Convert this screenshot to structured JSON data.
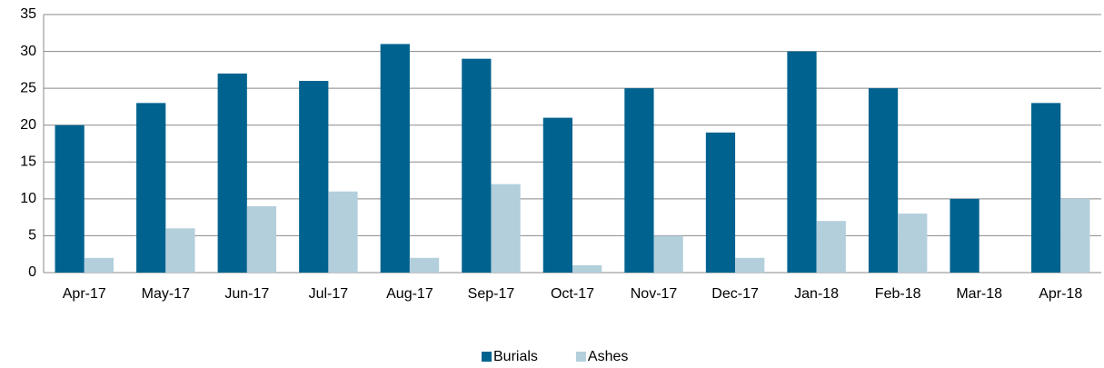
{
  "chart_data": {
    "type": "bar",
    "categories": [
      "Apr-17",
      "May-17",
      "Jun-17",
      "Jul-17",
      "Aug-17",
      "Sep-17",
      "Oct-17",
      "Nov-17",
      "Dec-17",
      "Jan-18",
      "Feb-18",
      "Mar-18",
      "Apr-18"
    ],
    "series": [
      {
        "name": "Burials",
        "color": "#00628f",
        "values": [
          20,
          23,
          27,
          26,
          31,
          29,
          21,
          25,
          19,
          30,
          25,
          10,
          23
        ]
      },
      {
        "name": "Ashes",
        "color": "#b3cfdc",
        "values": [
          2,
          6,
          9,
          11,
          2,
          12,
          1,
          5,
          2,
          7,
          8,
          0,
          10
        ]
      }
    ],
    "ylim": [
      0,
      35
    ],
    "yticks": [
      0,
      5,
      10,
      15,
      20,
      25,
      30,
      35
    ],
    "grid": true,
    "legend": "bottom"
  }
}
